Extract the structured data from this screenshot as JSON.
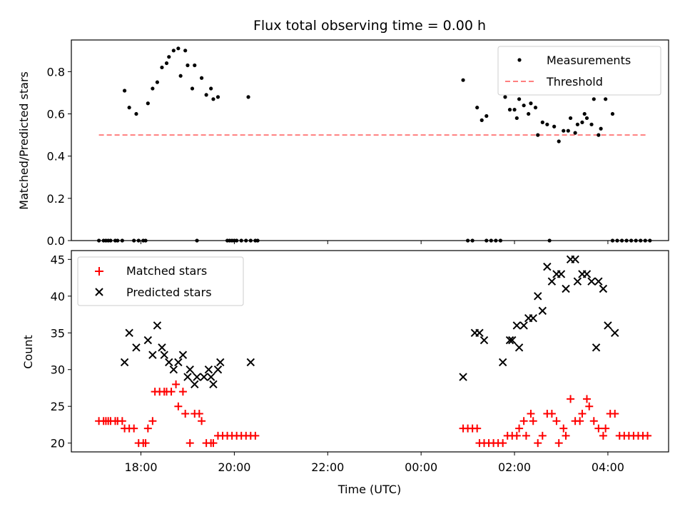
{
  "chart_data": [
    {
      "type": "scatter",
      "title": "Flux total observing time = 0.00 h",
      "xlabel": "",
      "ylabel": "Matched/Predicted stars",
      "xlim_hours": [
        16.51,
        29.3
      ],
      "ylim": [
        0,
        0.95
      ],
      "yticks": [
        0.0,
        0.2,
        0.4,
        0.6,
        0.8
      ],
      "ytick_labels": [
        "0.0",
        "0.2",
        "0.4",
        "0.6",
        "0.8"
      ],
      "grid": false,
      "legend": "top-right",
      "legend_labels": {
        "measurements": "Measurements",
        "threshold": "Threshold"
      },
      "threshold": {
        "y": 0.5,
        "x_start": 17.1,
        "x_end": 28.85,
        "color": "#ff7f7f"
      },
      "series": [
        {
          "name": "Measurements",
          "color": "#000000",
          "points": [
            [
              17.1,
              0
            ],
            [
              17.2,
              0
            ],
            [
              17.25,
              0
            ],
            [
              17.3,
              0
            ],
            [
              17.35,
              0
            ],
            [
              17.45,
              0
            ],
            [
              17.5,
              0
            ],
            [
              17.6,
              0
            ],
            [
              17.85,
              0
            ],
            [
              17.95,
              0
            ],
            [
              18.05,
              0
            ],
            [
              18.1,
              0
            ],
            [
              19.2,
              0
            ],
            [
              19.85,
              0
            ],
            [
              19.9,
              0
            ],
            [
              19.95,
              0
            ],
            [
              20.0,
              0
            ],
            [
              20.05,
              0
            ],
            [
              20.15,
              0
            ],
            [
              20.25,
              0
            ],
            [
              20.35,
              0
            ],
            [
              20.45,
              0
            ],
            [
              20.5,
              0
            ],
            [
              25.0,
              0
            ],
            [
              25.1,
              0
            ],
            [
              25.4,
              0
            ],
            [
              25.5,
              0
            ],
            [
              25.6,
              0
            ],
            [
              25.7,
              0
            ],
            [
              26.75,
              0
            ],
            [
              28.1,
              0
            ],
            [
              28.2,
              0
            ],
            [
              28.3,
              0
            ],
            [
              28.4,
              0
            ],
            [
              28.5,
              0
            ],
            [
              28.6,
              0
            ],
            [
              28.7,
              0
            ],
            [
              28.8,
              0
            ],
            [
              28.9,
              0
            ],
            [
              17.65,
              0.71
            ],
            [
              17.75,
              0.63
            ],
            [
              17.9,
              0.6
            ],
            [
              18.15,
              0.65
            ],
            [
              18.25,
              0.72
            ],
            [
              18.35,
              0.75
            ],
            [
              18.45,
              0.82
            ],
            [
              18.55,
              0.84
            ],
            [
              18.6,
              0.87
            ],
            [
              18.7,
              0.9
            ],
            [
              18.8,
              0.91
            ],
            [
              18.85,
              0.78
            ],
            [
              18.95,
              0.9
            ],
            [
              19.0,
              0.83
            ],
            [
              19.1,
              0.72
            ],
            [
              19.15,
              0.83
            ],
            [
              19.3,
              0.77
            ],
            [
              19.4,
              0.69
            ],
            [
              19.5,
              0.72
            ],
            [
              19.55,
              0.67
            ],
            [
              19.65,
              0.68
            ],
            [
              20.3,
              0.68
            ],
            [
              24.9,
              0.76
            ],
            [
              25.2,
              0.63
            ],
            [
              25.3,
              0.57
            ],
            [
              25.4,
              0.59
            ],
            [
              25.8,
              0.68
            ],
            [
              25.9,
              0.62
            ],
            [
              26.0,
              0.62
            ],
            [
              26.05,
              0.58
            ],
            [
              26.1,
              0.67
            ],
            [
              26.2,
              0.64
            ],
            [
              26.3,
              0.6
            ],
            [
              26.35,
              0.65
            ],
            [
              26.45,
              0.63
            ],
            [
              26.5,
              0.5
            ],
            [
              26.6,
              0.56
            ],
            [
              26.7,
              0.55
            ],
            [
              26.85,
              0.54
            ],
            [
              26.95,
              0.47
            ],
            [
              27.05,
              0.52
            ],
            [
              27.15,
              0.52
            ],
            [
              27.2,
              0.58
            ],
            [
              27.3,
              0.51
            ],
            [
              27.35,
              0.55
            ],
            [
              27.45,
              0.56
            ],
            [
              27.5,
              0.6
            ],
            [
              27.55,
              0.58
            ],
            [
              27.65,
              0.55
            ],
            [
              27.7,
              0.67
            ],
            [
              27.8,
              0.5
            ],
            [
              27.85,
              0.53
            ],
            [
              27.95,
              0.67
            ],
            [
              28.1,
              0.6
            ]
          ]
        }
      ]
    },
    {
      "type": "scatter",
      "title": "",
      "xlabel": "Time (UTC)",
      "ylabel": "Count",
      "xlim_hours": [
        16.51,
        29.3
      ],
      "ylim": [
        18.8,
        46.2
      ],
      "yticks": [
        20,
        25,
        30,
        35,
        40,
        45
      ],
      "ytick_labels": [
        "20",
        "25",
        "30",
        "35",
        "40",
        "45"
      ],
      "xticks_hours": [
        18,
        20,
        22,
        24,
        26,
        28
      ],
      "xtick_labels": [
        "18:00",
        "20:00",
        "22:00",
        "00:00",
        "02:00",
        "04:00"
      ],
      "grid": false,
      "legend": "top-left",
      "series": [
        {
          "name": "Matched stars",
          "marker": "plus",
          "color": "#ff0000",
          "points": [
            [
              17.1,
              23
            ],
            [
              17.2,
              23
            ],
            [
              17.25,
              23
            ],
            [
              17.3,
              23
            ],
            [
              17.35,
              23
            ],
            [
              17.45,
              23
            ],
            [
              17.5,
              23
            ],
            [
              17.6,
              23
            ],
            [
              17.65,
              22
            ],
            [
              17.75,
              22
            ],
            [
              17.85,
              22
            ],
            [
              17.95,
              20
            ],
            [
              18.05,
              20
            ],
            [
              18.1,
              20
            ],
            [
              18.15,
              22
            ],
            [
              18.25,
              23
            ],
            [
              18.3,
              27
            ],
            [
              18.4,
              27
            ],
            [
              18.5,
              27
            ],
            [
              18.55,
              27
            ],
            [
              18.65,
              27
            ],
            [
              18.75,
              28
            ],
            [
              18.8,
              25
            ],
            [
              18.9,
              27
            ],
            [
              18.95,
              24
            ],
            [
              19.05,
              20
            ],
            [
              19.15,
              24
            ],
            [
              19.25,
              24
            ],
            [
              19.3,
              23
            ],
            [
              19.4,
              20
            ],
            [
              19.5,
              20
            ],
            [
              19.55,
              20
            ],
            [
              19.65,
              21
            ],
            [
              19.75,
              21
            ],
            [
              19.85,
              21
            ],
            [
              19.95,
              21
            ],
            [
              20.05,
              21
            ],
            [
              20.15,
              21
            ],
            [
              20.25,
              21
            ],
            [
              20.35,
              21
            ],
            [
              20.45,
              21
            ],
            [
              24.9,
              22
            ],
            [
              25.0,
              22
            ],
            [
              25.1,
              22
            ],
            [
              25.2,
              22
            ],
            [
              25.25,
              20
            ],
            [
              25.35,
              20
            ],
            [
              25.45,
              20
            ],
            [
              25.55,
              20
            ],
            [
              25.65,
              20
            ],
            [
              25.75,
              20
            ],
            [
              25.85,
              21
            ],
            [
              25.95,
              21
            ],
            [
              26.05,
              21
            ],
            [
              26.1,
              22
            ],
            [
              26.2,
              23
            ],
            [
              26.25,
              21
            ],
            [
              26.35,
              24
            ],
            [
              26.4,
              23
            ],
            [
              26.5,
              20
            ],
            [
              26.6,
              21
            ],
            [
              26.7,
              24
            ],
            [
              26.8,
              24
            ],
            [
              26.9,
              23
            ],
            [
              26.95,
              20
            ],
            [
              27.05,
              22
            ],
            [
              27.1,
              21
            ],
            [
              27.2,
              26
            ],
            [
              27.3,
              23
            ],
            [
              27.4,
              23
            ],
            [
              27.45,
              24
            ],
            [
              27.55,
              26
            ],
            [
              27.6,
              25
            ],
            [
              27.7,
              23
            ],
            [
              27.8,
              22
            ],
            [
              27.9,
              21
            ],
            [
              27.95,
              22
            ],
            [
              28.05,
              24
            ],
            [
              28.15,
              24
            ],
            [
              28.25,
              21
            ],
            [
              28.35,
              21
            ],
            [
              28.45,
              21
            ],
            [
              28.55,
              21
            ],
            [
              28.65,
              21
            ],
            [
              28.75,
              21
            ],
            [
              28.85,
              21
            ]
          ]
        },
        {
          "name": "Predicted stars",
          "marker": "x",
          "color": "#000000",
          "points": [
            [
              17.65,
              31
            ],
            [
              17.75,
              35
            ],
            [
              17.9,
              33
            ],
            [
              18.15,
              34
            ],
            [
              18.25,
              32
            ],
            [
              18.35,
              36
            ],
            [
              18.45,
              33
            ],
            [
              18.5,
              32
            ],
            [
              18.6,
              31
            ],
            [
              18.7,
              30
            ],
            [
              18.8,
              31
            ],
            [
              18.9,
              32
            ],
            [
              19.0,
              29
            ],
            [
              19.05,
              30
            ],
            [
              19.15,
              28
            ],
            [
              19.2,
              29
            ],
            [
              19.35,
              29
            ],
            [
              19.45,
              30
            ],
            [
              19.5,
              29
            ],
            [
              19.55,
              28
            ],
            [
              19.65,
              30
            ],
            [
              19.7,
              31
            ],
            [
              20.35,
              31
            ],
            [
              24.9,
              29
            ],
            [
              25.15,
              35
            ],
            [
              25.25,
              35
            ],
            [
              25.35,
              34
            ],
            [
              25.75,
              31
            ],
            [
              25.9,
              34
            ],
            [
              25.95,
              34
            ],
            [
              26.05,
              36
            ],
            [
              26.1,
              33
            ],
            [
              26.2,
              36
            ],
            [
              26.3,
              37
            ],
            [
              26.4,
              37
            ],
            [
              26.5,
              40
            ],
            [
              26.6,
              38
            ],
            [
              26.7,
              44
            ],
            [
              26.8,
              42
            ],
            [
              26.9,
              43
            ],
            [
              27.0,
              43
            ],
            [
              27.1,
              41
            ],
            [
              27.2,
              45
            ],
            [
              27.3,
              45
            ],
            [
              27.35,
              42
            ],
            [
              27.45,
              43
            ],
            [
              27.55,
              43
            ],
            [
              27.65,
              42
            ],
            [
              27.75,
              33
            ],
            [
              27.8,
              42
            ],
            [
              27.9,
              41
            ],
            [
              28.0,
              36
            ],
            [
              28.15,
              35
            ]
          ]
        }
      ]
    }
  ]
}
